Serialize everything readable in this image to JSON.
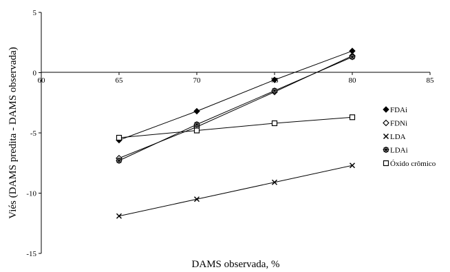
{
  "chart_data": {
    "type": "line",
    "title": "",
    "xlabel": "DAMS observada, %",
    "ylabel": "Viés (DAMS predita - DAMS observada)",
    "x": [
      65,
      70,
      75,
      80
    ],
    "xlim": [
      60,
      85
    ],
    "ylim": [
      -15,
      5
    ],
    "xticks": [
      60,
      65,
      70,
      75,
      80,
      85
    ],
    "yticks": [
      -15,
      -10,
      -5,
      0,
      5
    ],
    "grid": false,
    "legend_position": "right",
    "series": [
      {
        "name": "FDAi",
        "marker": "filled-diamond",
        "values": [
          -5.6,
          -3.2,
          -0.6,
          1.8
        ]
      },
      {
        "name": "FDNi",
        "marker": "open-diamond",
        "values": [
          -7.1,
          -4.5,
          -1.6,
          1.4
        ]
      },
      {
        "name": "LDA",
        "marker": "cross",
        "values": [
          -11.9,
          -10.5,
          -9.1,
          -7.7
        ]
      },
      {
        "name": "LDAi",
        "marker": "asterisk-circle",
        "values": [
          -7.3,
          -4.3,
          -1.5,
          1.3
        ]
      },
      {
        "name": "Óxido crômico",
        "marker": "open-square",
        "values": [
          -5.4,
          -4.8,
          -4.2,
          -3.7
        ]
      }
    ]
  }
}
